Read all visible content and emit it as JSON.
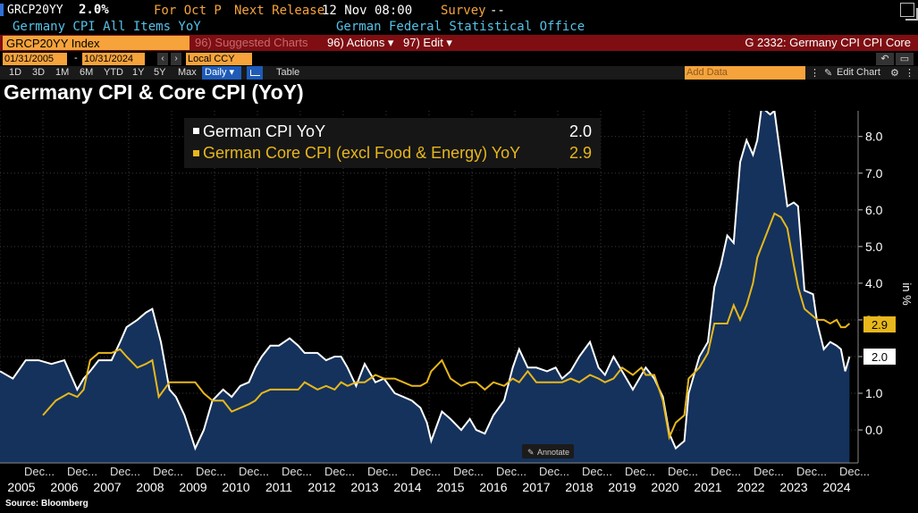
{
  "header": {
    "ticker": "GRCP20YY",
    "last_value": "2.0%",
    "for_period": "For Oct P",
    "next_release_label": "Next Release",
    "next_release_value": "12 Nov 08:00",
    "survey_label": "Survey",
    "survey_value": "--",
    "description": "Germany CPI All Items YoY",
    "source_name": "German Federal Statistical Office"
  },
  "toolbar": {
    "security": "GRCP20YY Index",
    "suggested_charts": "96) Suggested Charts",
    "actions": "96) Actions ▾",
    "edit": "97) Edit ▾",
    "graph_title": "G 2332: Germany CPI CPI Core",
    "date_start": "01/31/2005",
    "date_end": "10/31/2024",
    "currency": "Local CCY",
    "periods": [
      "1D",
      "3D",
      "1M",
      "6M",
      "YTD",
      "1Y",
      "5Y",
      "Max"
    ],
    "frequency": "Daily ▾",
    "table_label": "Table",
    "add_data_placeholder": "Add Data",
    "edit_chart": "Edit Chart"
  },
  "chart_data": {
    "type": "line",
    "title": "Germany CPI & Core CPI (YoY)",
    "source": "Source: Bloomberg",
    "ylabel": "in %",
    "ylim": [
      -0.9,
      8.7
    ],
    "yticks": [
      0.0,
      1.0,
      2.0,
      3.0,
      4.0,
      5.0,
      6.0,
      7.0,
      8.0
    ],
    "ytick_labels": [
      "0.0",
      "1.0",
      "2.0",
      "3.0",
      "4.0",
      "5.0",
      "6.0",
      "7.0",
      "8.0"
    ],
    "xlim": [
      2005.0,
      2025.0
    ],
    "x_month_label": "Dec...",
    "x_year_labels": [
      "2005",
      "2006",
      "2007",
      "2008",
      "2009",
      "2010",
      "2011",
      "2012",
      "2013",
      "2014",
      "2015",
      "2016",
      "2017",
      "2018",
      "2019",
      "2020",
      "2021",
      "2022",
      "2023",
      "2024"
    ],
    "legend_position": "top-left",
    "annotate_label": "Annotate",
    "series": [
      {
        "name": "German CPI YoY",
        "last": "2.0",
        "color": "#ffffff",
        "fill": "#15325c",
        "points": [
          [
            2005.0,
            1.6
          ],
          [
            2005.3,
            1.4
          ],
          [
            2005.6,
            1.9
          ],
          [
            2005.9,
            1.9
          ],
          [
            2006.2,
            1.8
          ],
          [
            2006.5,
            1.9
          ],
          [
            2006.8,
            1.1
          ],
          [
            2006.95,
            1.4
          ],
          [
            2007.1,
            1.6
          ],
          [
            2007.3,
            1.9
          ],
          [
            2007.6,
            1.9
          ],
          [
            2007.8,
            2.4
          ],
          [
            2007.95,
            2.8
          ],
          [
            2008.2,
            3.0
          ],
          [
            2008.4,
            3.2
          ],
          [
            2008.55,
            3.3
          ],
          [
            2008.75,
            2.4
          ],
          [
            2008.95,
            1.1
          ],
          [
            2009.1,
            0.9
          ],
          [
            2009.3,
            0.4
          ],
          [
            2009.55,
            -0.5
          ],
          [
            2009.75,
            0.0
          ],
          [
            2009.95,
            0.8
          ],
          [
            2010.2,
            1.1
          ],
          [
            2010.4,
            0.9
          ],
          [
            2010.6,
            1.2
          ],
          [
            2010.8,
            1.3
          ],
          [
            2010.95,
            1.7
          ],
          [
            2011.1,
            2.0
          ],
          [
            2011.3,
            2.3
          ],
          [
            2011.5,
            2.3
          ],
          [
            2011.75,
            2.5
          ],
          [
            2011.95,
            2.3
          ],
          [
            2012.1,
            2.1
          ],
          [
            2012.4,
            2.1
          ],
          [
            2012.6,
            1.9
          ],
          [
            2012.8,
            2.0
          ],
          [
            2012.95,
            2.0
          ],
          [
            2013.1,
            1.7
          ],
          [
            2013.3,
            1.2
          ],
          [
            2013.5,
            1.8
          ],
          [
            2013.75,
            1.3
          ],
          [
            2013.95,
            1.4
          ],
          [
            2014.2,
            1.0
          ],
          [
            2014.4,
            0.9
          ],
          [
            2014.6,
            0.8
          ],
          [
            2014.8,
            0.6
          ],
          [
            2014.95,
            0.2
          ],
          [
            2015.05,
            -0.3
          ],
          [
            2015.3,
            0.5
          ],
          [
            2015.5,
            0.3
          ],
          [
            2015.75,
            0.0
          ],
          [
            2015.95,
            0.3
          ],
          [
            2016.1,
            0.0
          ],
          [
            2016.3,
            -0.1
          ],
          [
            2016.5,
            0.4
          ],
          [
            2016.75,
            0.8
          ],
          [
            2016.95,
            1.7
          ],
          [
            2017.1,
            2.2
          ],
          [
            2017.3,
            1.7
          ],
          [
            2017.5,
            1.7
          ],
          [
            2017.75,
            1.6
          ],
          [
            2017.95,
            1.7
          ],
          [
            2018.1,
            1.4
          ],
          [
            2018.3,
            1.6
          ],
          [
            2018.5,
            2.0
          ],
          [
            2018.75,
            2.4
          ],
          [
            2018.95,
            1.7
          ],
          [
            2019.1,
            1.5
          ],
          [
            2019.3,
            2.0
          ],
          [
            2019.5,
            1.6
          ],
          [
            2019.75,
            1.1
          ],
          [
            2019.95,
            1.5
          ],
          [
            2020.05,
            1.7
          ],
          [
            2020.25,
            1.4
          ],
          [
            2020.45,
            0.9
          ],
          [
            2020.6,
            -0.1
          ],
          [
            2020.75,
            -0.5
          ],
          [
            2020.95,
            -0.3
          ],
          [
            2021.05,
            1.0
          ],
          [
            2021.3,
            2.0
          ],
          [
            2021.5,
            2.4
          ],
          [
            2021.65,
            3.9
          ],
          [
            2021.8,
            4.5
          ],
          [
            2021.95,
            5.3
          ],
          [
            2022.1,
            5.1
          ],
          [
            2022.25,
            7.3
          ],
          [
            2022.4,
            7.9
          ],
          [
            2022.55,
            7.5
          ],
          [
            2022.65,
            7.9
          ],
          [
            2022.75,
            8.8
          ],
          [
            2022.95,
            8.6
          ],
          [
            2023.05,
            8.7
          ],
          [
            2023.2,
            7.4
          ],
          [
            2023.35,
            6.1
          ],
          [
            2023.5,
            6.2
          ],
          [
            2023.6,
            6.1
          ],
          [
            2023.75,
            3.8
          ],
          [
            2023.95,
            3.7
          ],
          [
            2024.05,
            2.9
          ],
          [
            2024.2,
            2.2
          ],
          [
            2024.35,
            2.4
          ],
          [
            2024.5,
            2.3
          ],
          [
            2024.6,
            2.2
          ],
          [
            2024.7,
            1.6
          ],
          [
            2024.8,
            2.0
          ]
        ]
      },
      {
        "name": "German Core CPI (excl Food & Energy) YoY",
        "last": "2.9",
        "color": "#e7b71c",
        "points": [
          [
            2006.0,
            0.4
          ],
          [
            2006.3,
            0.8
          ],
          [
            2006.6,
            1.0
          ],
          [
            2006.8,
            0.9
          ],
          [
            2006.95,
            1.1
          ],
          [
            2007.1,
            1.9
          ],
          [
            2007.3,
            2.1
          ],
          [
            2007.6,
            2.1
          ],
          [
            2007.8,
            2.2
          ],
          [
            2007.95,
            2.0
          ],
          [
            2008.2,
            1.7
          ],
          [
            2008.4,
            1.8
          ],
          [
            2008.55,
            1.9
          ],
          [
            2008.7,
            0.9
          ],
          [
            2008.95,
            1.3
          ],
          [
            2009.1,
            1.3
          ],
          [
            2009.3,
            1.3
          ],
          [
            2009.55,
            1.3
          ],
          [
            2009.75,
            1.0
          ],
          [
            2009.95,
            0.8
          ],
          [
            2010.2,
            0.8
          ],
          [
            2010.4,
            0.5
          ],
          [
            2010.6,
            0.6
          ],
          [
            2010.8,
            0.7
          ],
          [
            2010.95,
            0.8
          ],
          [
            2011.1,
            1.0
          ],
          [
            2011.3,
            1.1
          ],
          [
            2011.5,
            1.1
          ],
          [
            2011.75,
            1.1
          ],
          [
            2011.95,
            1.1
          ],
          [
            2012.1,
            1.3
          ],
          [
            2012.4,
            1.1
          ],
          [
            2012.6,
            1.2
          ],
          [
            2012.8,
            1.1
          ],
          [
            2012.95,
            1.3
          ],
          [
            2013.1,
            1.2
          ],
          [
            2013.3,
            1.3
          ],
          [
            2013.5,
            1.3
          ],
          [
            2013.75,
            1.5
          ],
          [
            2013.95,
            1.4
          ],
          [
            2014.2,
            1.4
          ],
          [
            2014.4,
            1.3
          ],
          [
            2014.6,
            1.2
          ],
          [
            2014.8,
            1.2
          ],
          [
            2014.95,
            1.3
          ],
          [
            2015.05,
            1.6
          ],
          [
            2015.3,
            1.9
          ],
          [
            2015.5,
            1.4
          ],
          [
            2015.75,
            1.2
          ],
          [
            2015.95,
            1.3
          ],
          [
            2016.1,
            1.3
          ],
          [
            2016.3,
            1.1
          ],
          [
            2016.5,
            1.3
          ],
          [
            2016.75,
            1.2
          ],
          [
            2016.95,
            1.4
          ],
          [
            2017.1,
            1.3
          ],
          [
            2017.3,
            1.6
          ],
          [
            2017.5,
            1.3
          ],
          [
            2017.75,
            1.3
          ],
          [
            2017.95,
            1.3
          ],
          [
            2018.1,
            1.3
          ],
          [
            2018.3,
            1.4
          ],
          [
            2018.5,
            1.3
          ],
          [
            2018.75,
            1.5
          ],
          [
            2018.95,
            1.4
          ],
          [
            2019.1,
            1.3
          ],
          [
            2019.3,
            1.4
          ],
          [
            2019.5,
            1.7
          ],
          [
            2019.75,
            1.5
          ],
          [
            2019.95,
            1.7
          ],
          [
            2020.05,
            1.5
          ],
          [
            2020.25,
            1.5
          ],
          [
            2020.45,
            0.8
          ],
          [
            2020.6,
            -0.2
          ],
          [
            2020.75,
            0.2
          ],
          [
            2020.95,
            0.4
          ],
          [
            2021.05,
            1.4
          ],
          [
            2021.3,
            1.7
          ],
          [
            2021.5,
            2.1
          ],
          [
            2021.65,
            2.9
          ],
          [
            2021.8,
            2.9
          ],
          [
            2021.95,
            2.9
          ],
          [
            2022.1,
            3.4
          ],
          [
            2022.25,
            3.0
          ],
          [
            2022.4,
            3.4
          ],
          [
            2022.55,
            4.0
          ],
          [
            2022.65,
            4.7
          ],
          [
            2022.75,
            5.0
          ],
          [
            2022.95,
            5.6
          ],
          [
            2023.05,
            5.9
          ],
          [
            2023.2,
            5.8
          ],
          [
            2023.35,
            5.5
          ],
          [
            2023.5,
            4.5
          ],
          [
            2023.6,
            3.9
          ],
          [
            2023.75,
            3.3
          ],
          [
            2023.95,
            3.1
          ],
          [
            2024.05,
            3.0
          ],
          [
            2024.2,
            3.0
          ],
          [
            2024.35,
            2.9
          ],
          [
            2024.5,
            3.0
          ],
          [
            2024.6,
            2.8
          ],
          [
            2024.7,
            2.8
          ],
          [
            2024.8,
            2.9
          ]
        ]
      }
    ]
  }
}
